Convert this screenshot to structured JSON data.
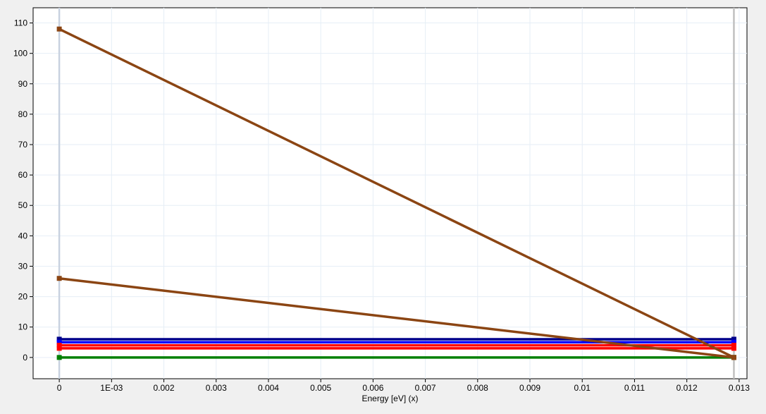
{
  "chart_data": {
    "type": "line",
    "xlabel": "Energy [eV] (x)",
    "ylabel": "",
    "xlim": [
      -0.0005,
      0.01315
    ],
    "ylim": [
      -7,
      115
    ],
    "x_ticks": [
      {
        "v": 0,
        "label": "0"
      },
      {
        "v": 0.001,
        "label": "1E-03"
      },
      {
        "v": 0.002,
        "label": "0.002"
      },
      {
        "v": 0.003,
        "label": "0.003"
      },
      {
        "v": 0.004,
        "label": "0.004"
      },
      {
        "v": 0.005,
        "label": "0.005"
      },
      {
        "v": 0.006,
        "label": "0.006"
      },
      {
        "v": 0.007,
        "label": "0.007"
      },
      {
        "v": 0.008,
        "label": "0.008"
      },
      {
        "v": 0.009,
        "label": "0.009"
      },
      {
        "v": 0.01,
        "label": "0.01"
      },
      {
        "v": 0.011,
        "label": "0.011"
      },
      {
        "v": 0.012,
        "label": "0.012"
      },
      {
        "v": 0.013,
        "label": "0.013"
      }
    ],
    "y_ticks": [
      0,
      10,
      20,
      30,
      40,
      50,
      60,
      70,
      80,
      90,
      100,
      110
    ],
    "grid": true,
    "series": [
      {
        "color": "#00008b",
        "points": [
          [
            0,
            6
          ],
          [
            0.0129,
            6
          ]
        ],
        "markers": true
      },
      {
        "color": "#0000ff",
        "points": [
          [
            0,
            5
          ],
          [
            0.0129,
            5
          ]
        ],
        "markers": true
      },
      {
        "color": "#ff0000",
        "points": [
          [
            0,
            4
          ],
          [
            0.0129,
            4
          ]
        ],
        "markers": true
      },
      {
        "color": "#ff0000",
        "points": [
          [
            0,
            3
          ],
          [
            0.0129,
            3
          ]
        ],
        "markers": true
      },
      {
        "color": "#008000",
        "points": [
          [
            0,
            0
          ],
          [
            0.0129,
            0
          ]
        ],
        "markers": true
      },
      {
        "color": "#8b4513",
        "points": [
          [
            0,
            108
          ],
          [
            0.0129,
            0
          ]
        ],
        "markers": true
      },
      {
        "color": "#8b4513",
        "points": [
          [
            0,
            26
          ],
          [
            0.0129,
            0
          ]
        ],
        "markers": true
      }
    ],
    "vertical_markers": [
      {
        "x": 0,
        "color": "#c8d2e0"
      },
      {
        "x": 0.0129,
        "color": "#c0c0c0"
      }
    ]
  }
}
